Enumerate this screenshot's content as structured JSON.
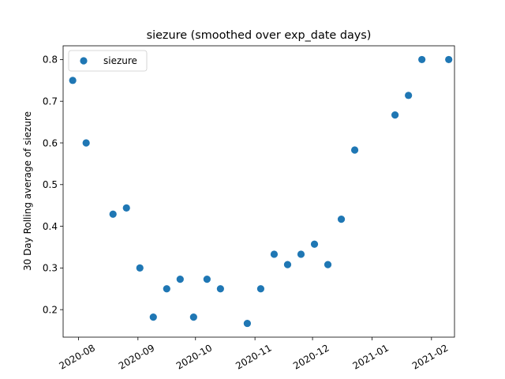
{
  "chart_data": {
    "type": "scatter",
    "title": "siezure (smoothed over exp_date days)",
    "xlabel": "",
    "ylabel": "30 Day Rolling average of siezure",
    "x_is_date": true,
    "xlim": [
      "2020-07-24",
      "2021-02-13"
    ],
    "ylim": [
      0.134,
      0.833
    ],
    "x_ticks": [
      "2020-08-01",
      "2020-09-01",
      "2020-10-01",
      "2020-11-01",
      "2020-12-01",
      "2021-01-01",
      "2021-02-01"
    ],
    "x_tick_labels": [
      "2020-08",
      "2020-09",
      "2020-10",
      "2020-11",
      "2020-12",
      "2021-01",
      "2021-02"
    ],
    "y_ticks": [
      0.2,
      0.3,
      0.4,
      0.5,
      0.6,
      0.7,
      0.8
    ],
    "y_tick_labels": [
      "0.2",
      "0.3",
      "0.4",
      "0.5",
      "0.6",
      "0.7",
      "0.8"
    ],
    "grid": false,
    "legend_position": "top-left",
    "series": [
      {
        "name": "siezure",
        "color": "#1f77b4",
        "marker": "circle",
        "points": [
          {
            "x": "2020-07-29",
            "y": 0.75
          },
          {
            "x": "2020-08-05",
            "y": 0.6
          },
          {
            "x": "2020-08-19",
            "y": 0.429
          },
          {
            "x": "2020-08-26",
            "y": 0.444
          },
          {
            "x": "2020-09-02",
            "y": 0.3
          },
          {
            "x": "2020-09-09",
            "y": 0.182
          },
          {
            "x": "2020-09-16",
            "y": 0.25
          },
          {
            "x": "2020-09-23",
            "y": 0.273
          },
          {
            "x": "2020-09-30",
            "y": 0.182
          },
          {
            "x": "2020-10-07",
            "y": 0.273
          },
          {
            "x": "2020-10-14",
            "y": 0.25
          },
          {
            "x": "2020-10-28",
            "y": 0.167
          },
          {
            "x": "2020-11-04",
            "y": 0.25
          },
          {
            "x": "2020-11-11",
            "y": 0.333
          },
          {
            "x": "2020-11-18",
            "y": 0.308
          },
          {
            "x": "2020-11-25",
            "y": 0.333
          },
          {
            "x": "2020-12-02",
            "y": 0.357
          },
          {
            "x": "2020-12-09",
            "y": 0.308
          },
          {
            "x": "2020-12-16",
            "y": 0.417
          },
          {
            "x": "2020-12-23",
            "y": 0.583
          },
          {
            "x": "2021-01-13",
            "y": 0.667
          },
          {
            "x": "2021-01-20",
            "y": 0.714
          },
          {
            "x": "2021-01-27",
            "y": 0.8
          },
          {
            "x": "2021-02-10",
            "y": 0.8
          }
        ]
      }
    ]
  }
}
